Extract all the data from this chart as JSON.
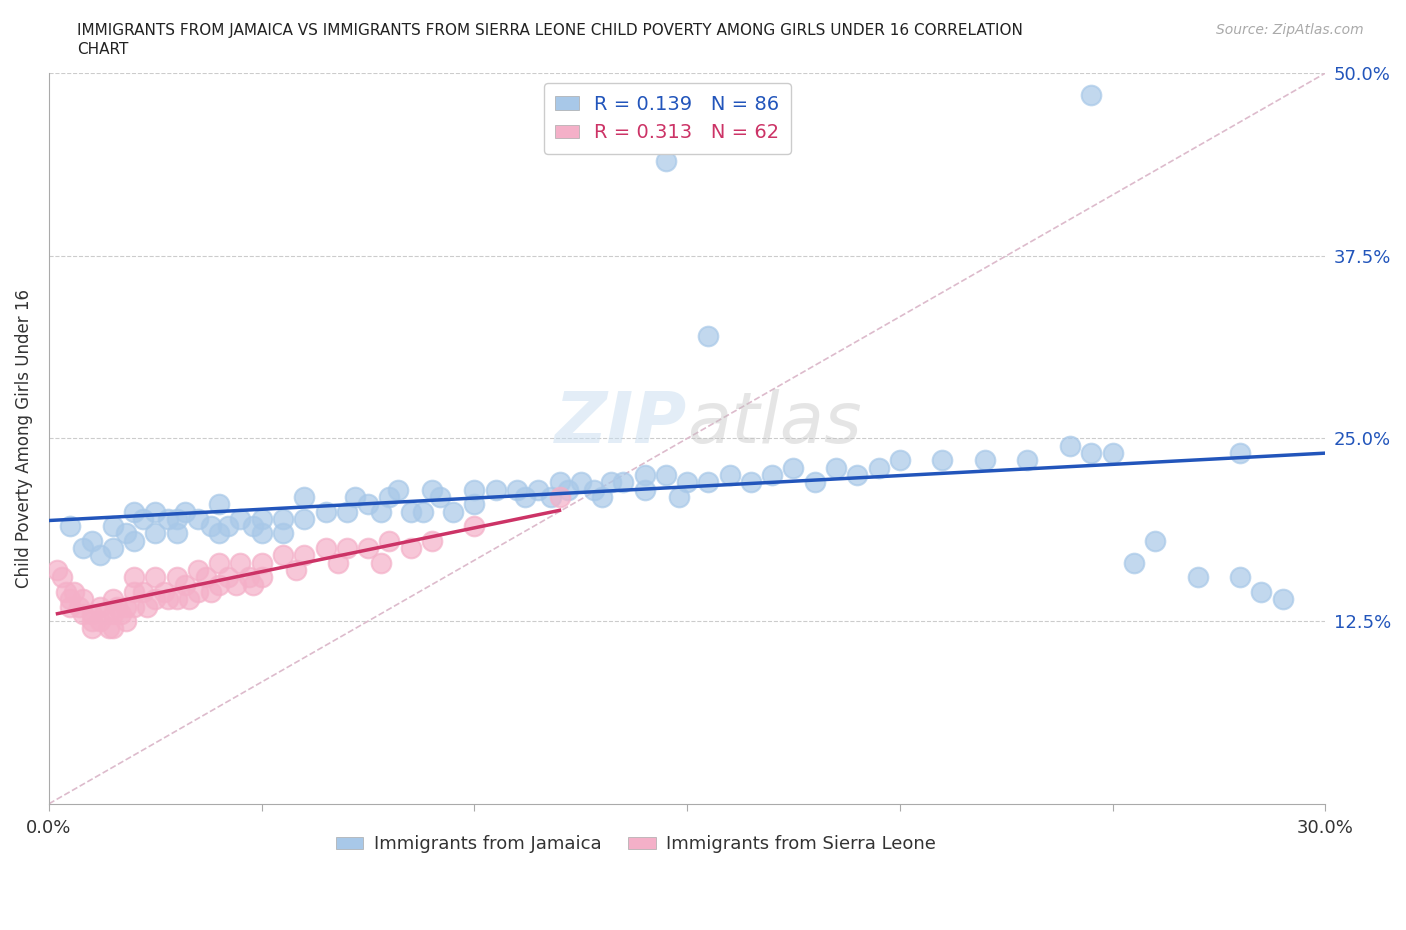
{
  "title_line1": "IMMIGRANTS FROM JAMAICA VS IMMIGRANTS FROM SIERRA LEONE CHILD POVERTY AMONG GIRLS UNDER 16 CORRELATION",
  "title_line2": "CHART",
  "source": "Source: ZipAtlas.com",
  "ylabel": "Child Poverty Among Girls Under 16",
  "R_jamaica": 0.139,
  "N_jamaica": 86,
  "R_sierra": 0.313,
  "N_sierra": 62,
  "color_jamaica": "#a8c8e8",
  "color_sierra": "#f4b0c8",
  "line_color_jamaica": "#2255bb",
  "line_color_sierra": "#cc3366",
  "diag_color": "#ddbbcc",
  "legend_label_jamaica": "Immigrants from Jamaica",
  "legend_label_sierra": "Immigrants from Sierra Leone",
  "xlim": [
    0.0,
    0.3
  ],
  "ylim": [
    0.0,
    0.5
  ],
  "jamaica_x": [
    0.005,
    0.008,
    0.01,
    0.012,
    0.015,
    0.015,
    0.018,
    0.02,
    0.02,
    0.022,
    0.025,
    0.025,
    0.028,
    0.03,
    0.03,
    0.032,
    0.035,
    0.038,
    0.04,
    0.04,
    0.042,
    0.045,
    0.048,
    0.05,
    0.05,
    0.055,
    0.055,
    0.06,
    0.06,
    0.065,
    0.07,
    0.072,
    0.075,
    0.078,
    0.08,
    0.082,
    0.085,
    0.088,
    0.09,
    0.092,
    0.095,
    0.1,
    0.1,
    0.105,
    0.11,
    0.112,
    0.115,
    0.118,
    0.12,
    0.122,
    0.125,
    0.128,
    0.13,
    0.132,
    0.135,
    0.14,
    0.14,
    0.145,
    0.148,
    0.15,
    0.155,
    0.16,
    0.165,
    0.17,
    0.175,
    0.18,
    0.185,
    0.19,
    0.195,
    0.2,
    0.21,
    0.22,
    0.23,
    0.24,
    0.245,
    0.25,
    0.255,
    0.26,
    0.27,
    0.28,
    0.285,
    0.29,
    0.155,
    0.28,
    0.245,
    0.145
  ],
  "jamaica_y": [
    0.19,
    0.175,
    0.18,
    0.17,
    0.19,
    0.175,
    0.185,
    0.2,
    0.18,
    0.195,
    0.2,
    0.185,
    0.195,
    0.195,
    0.185,
    0.2,
    0.195,
    0.19,
    0.205,
    0.185,
    0.19,
    0.195,
    0.19,
    0.195,
    0.185,
    0.195,
    0.185,
    0.21,
    0.195,
    0.2,
    0.2,
    0.21,
    0.205,
    0.2,
    0.21,
    0.215,
    0.2,
    0.2,
    0.215,
    0.21,
    0.2,
    0.215,
    0.205,
    0.215,
    0.215,
    0.21,
    0.215,
    0.21,
    0.22,
    0.215,
    0.22,
    0.215,
    0.21,
    0.22,
    0.22,
    0.225,
    0.215,
    0.225,
    0.21,
    0.22,
    0.22,
    0.225,
    0.22,
    0.225,
    0.23,
    0.22,
    0.23,
    0.225,
    0.23,
    0.235,
    0.235,
    0.235,
    0.235,
    0.245,
    0.24,
    0.24,
    0.165,
    0.18,
    0.155,
    0.155,
    0.145,
    0.14,
    0.32,
    0.24,
    0.485,
    0.44
  ],
  "sierra_x": [
    0.002,
    0.003,
    0.004,
    0.005,
    0.005,
    0.006,
    0.007,
    0.008,
    0.008,
    0.01,
    0.01,
    0.01,
    0.012,
    0.012,
    0.013,
    0.014,
    0.015,
    0.015,
    0.015,
    0.016,
    0.017,
    0.018,
    0.018,
    0.02,
    0.02,
    0.02,
    0.022,
    0.023,
    0.025,
    0.025,
    0.027,
    0.028,
    0.03,
    0.03,
    0.032,
    0.033,
    0.035,
    0.035,
    0.037,
    0.038,
    0.04,
    0.04,
    0.042,
    0.044,
    0.045,
    0.047,
    0.048,
    0.05,
    0.05,
    0.055,
    0.058,
    0.06,
    0.065,
    0.068,
    0.07,
    0.075,
    0.078,
    0.08,
    0.085,
    0.09,
    0.1,
    0.12
  ],
  "sierra_y": [
    0.16,
    0.155,
    0.145,
    0.135,
    0.14,
    0.145,
    0.135,
    0.13,
    0.14,
    0.13,
    0.125,
    0.12,
    0.135,
    0.125,
    0.13,
    0.12,
    0.14,
    0.13,
    0.12,
    0.135,
    0.13,
    0.135,
    0.125,
    0.155,
    0.145,
    0.135,
    0.145,
    0.135,
    0.155,
    0.14,
    0.145,
    0.14,
    0.155,
    0.14,
    0.15,
    0.14,
    0.16,
    0.145,
    0.155,
    0.145,
    0.165,
    0.15,
    0.155,
    0.15,
    0.165,
    0.155,
    0.15,
    0.165,
    0.155,
    0.17,
    0.16,
    0.17,
    0.175,
    0.165,
    0.175,
    0.175,
    0.165,
    0.18,
    0.175,
    0.18,
    0.19,
    0.21
  ]
}
